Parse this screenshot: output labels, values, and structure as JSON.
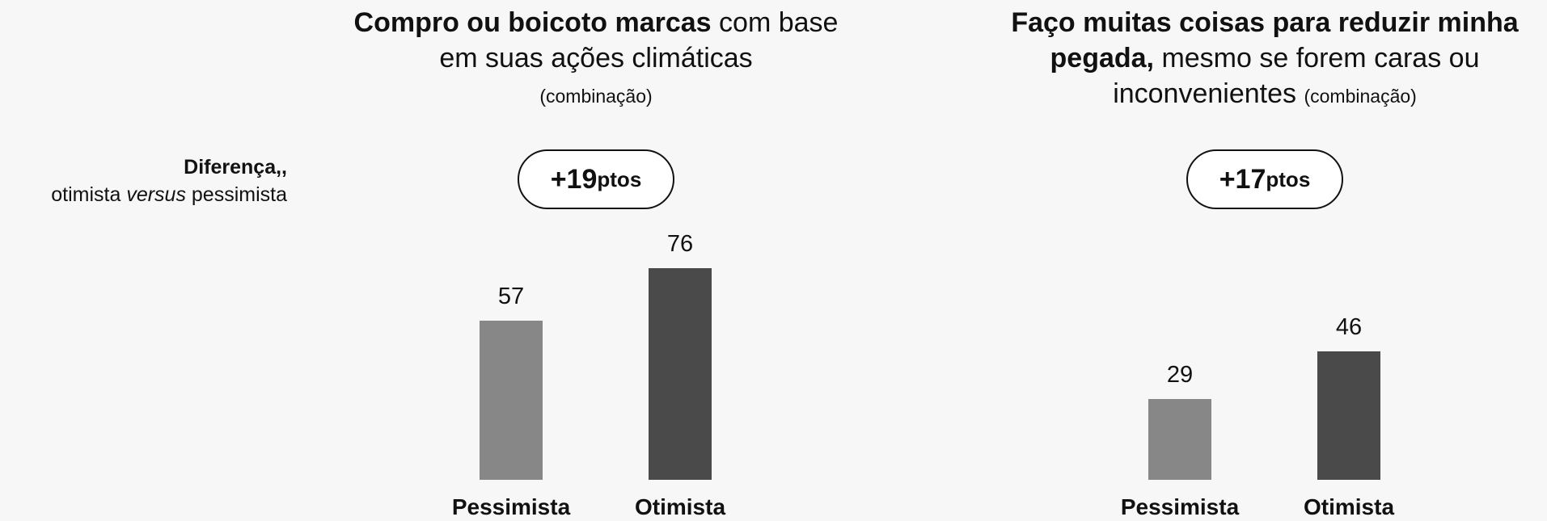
{
  "side_label": {
    "bold": "Diferença,,",
    "before": "otimista",
    "italic": "versus",
    "after": "pessimista"
  },
  "chart_data": [
    {
      "type": "bar",
      "title_bold": "Compro ou boicoto marcas",
      "title_rest": "com base em suas ações climáticas",
      "title_note": "(combinação)",
      "difference": "+19",
      "difference_unit": "ptos",
      "categories": [
        "Pessimista",
        "Otimista"
      ],
      "values": [
        57,
        76
      ],
      "colors": [
        "#878787",
        "#4a4a4a"
      ]
    },
    {
      "type": "bar",
      "title_bold": "Faço muitas coisas para reduzir minha pegada,",
      "title_rest": "mesmo se forem caras ou inconvenientes",
      "title_note": "(combinação)",
      "difference": "+17",
      "difference_unit": "ptos",
      "categories": [
        "Pessimista",
        "Otimista"
      ],
      "values": [
        29,
        46
      ],
      "colors": [
        "#878787",
        "#4a4a4a"
      ]
    }
  ]
}
